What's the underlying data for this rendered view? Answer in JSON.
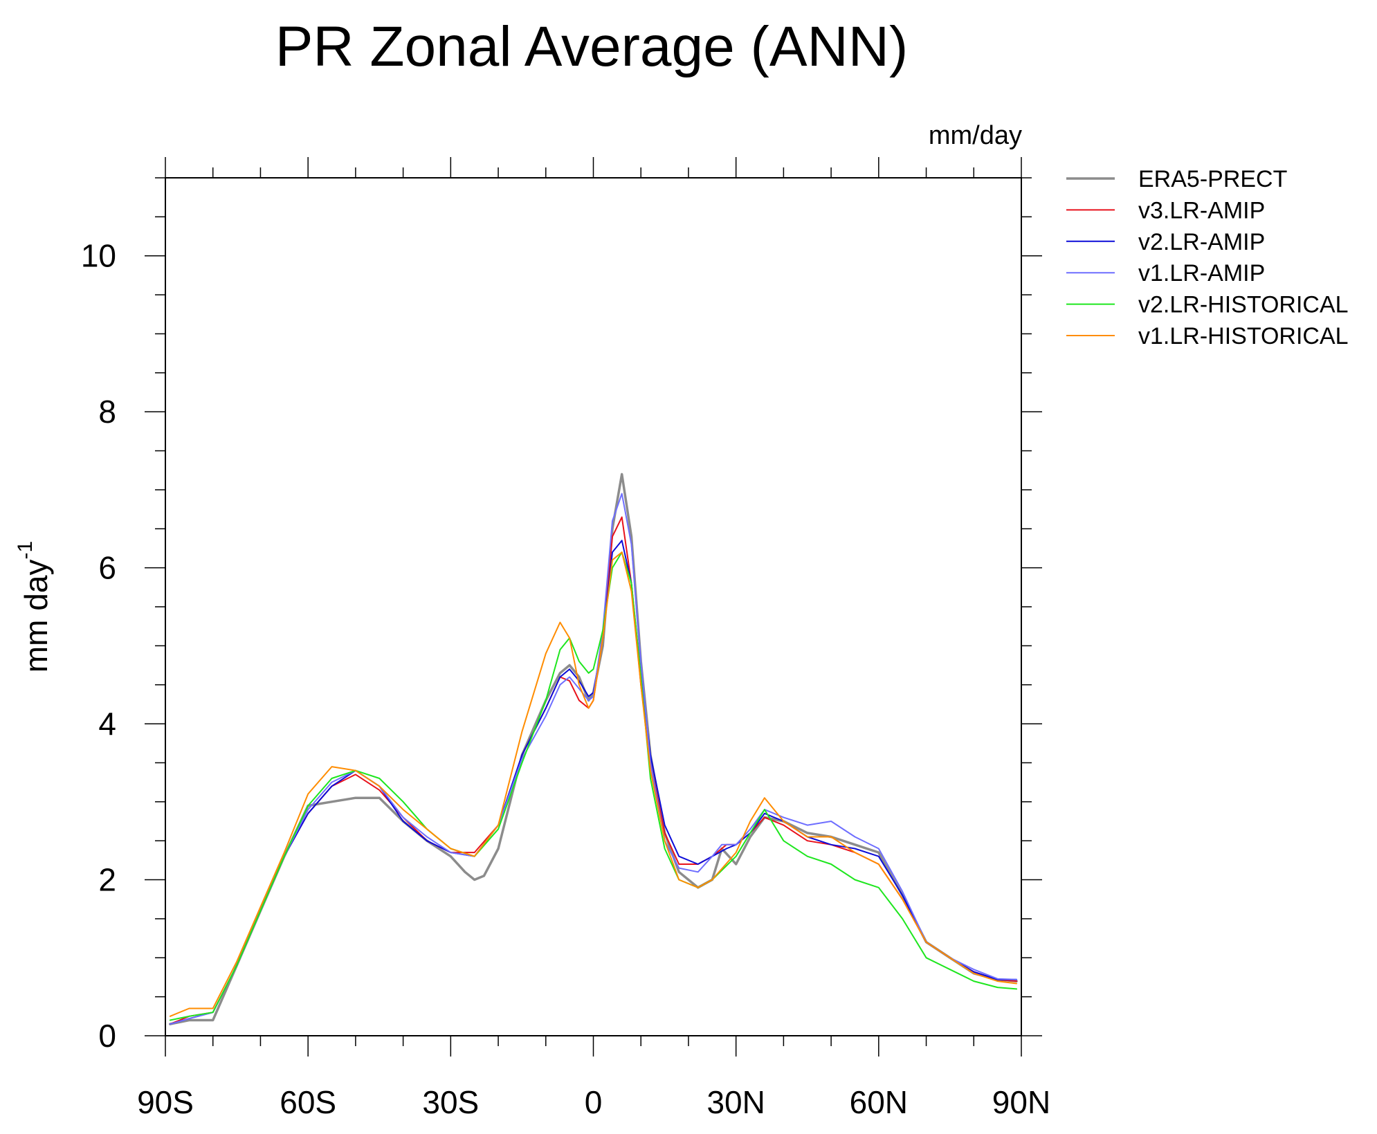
{
  "chart_data": {
    "type": "line",
    "title": "PR Zonal Average (ANN)",
    "units_label": "mm/day",
    "ylabel": "mm day",
    "ylabel_exponent": "-1",
    "xlabel": "",
    "xlim": [
      -90,
      90
    ],
    "ylim": [
      0,
      11
    ],
    "x_ticks": [
      -90,
      -60,
      -30,
      0,
      30,
      60,
      90
    ],
    "x_tick_labels": [
      "90S",
      "60S",
      "30S",
      "0",
      "30N",
      "60N",
      "90N"
    ],
    "y_ticks": [
      0,
      2,
      4,
      6,
      8,
      10
    ],
    "y_tick_labels": [
      "0",
      "2",
      "4",
      "6",
      "8",
      "10"
    ],
    "legend_position": "right",
    "series": [
      {
        "name": "ERA5-PRECT",
        "color": "#8c8c8c",
        "x": [
          -89,
          -85,
          -80,
          -75,
          -70,
          -65,
          -60,
          -55,
          -50,
          -45,
          -40,
          -35,
          -30,
          -27,
          -25,
          -23,
          -20,
          -15,
          -10,
          -7,
          -5,
          -3,
          -1,
          0,
          2,
          4,
          6,
          8,
          10,
          12,
          15,
          18,
          22,
          25,
          27,
          30,
          33,
          36,
          40,
          45,
          50,
          55,
          60,
          65,
          70,
          75,
          80,
          85,
          89
        ],
        "y": [
          0.15,
          0.2,
          0.2,
          0.9,
          1.6,
          2.3,
          2.95,
          3.0,
          3.05,
          3.05,
          2.75,
          2.5,
          2.3,
          2.1,
          2.0,
          2.05,
          2.4,
          3.6,
          4.3,
          4.65,
          4.75,
          4.6,
          4.3,
          4.4,
          5.0,
          6.5,
          7.2,
          6.4,
          4.8,
          3.6,
          2.6,
          2.1,
          1.9,
          2.0,
          2.4,
          2.2,
          2.55,
          2.8,
          2.75,
          2.6,
          2.55,
          2.45,
          2.35,
          1.8,
          1.2,
          1.0,
          0.8,
          0.72,
          0.7
        ]
      },
      {
        "name": "v3.LR-AMIP",
        "color": "#e8111b",
        "x": [
          -89,
          -85,
          -80,
          -75,
          -70,
          -65,
          -60,
          -55,
          -50,
          -45,
          -40,
          -35,
          -30,
          -25,
          -20,
          -15,
          -10,
          -7,
          -5,
          -3,
          -1,
          0,
          2,
          4,
          6,
          8,
          10,
          12,
          15,
          18,
          22,
          25,
          28,
          30,
          33,
          36,
          40,
          45,
          50,
          55,
          60,
          65,
          70,
          75,
          80,
          85,
          89
        ],
        "y": [
          0.15,
          0.25,
          0.3,
          0.9,
          1.6,
          2.3,
          2.85,
          3.2,
          3.35,
          3.15,
          2.8,
          2.5,
          2.35,
          2.35,
          2.7,
          3.6,
          4.2,
          4.6,
          4.55,
          4.3,
          4.2,
          4.3,
          5.1,
          6.4,
          6.65,
          5.8,
          4.5,
          3.5,
          2.6,
          2.2,
          2.2,
          2.3,
          2.45,
          2.45,
          2.6,
          2.8,
          2.7,
          2.5,
          2.45,
          2.35,
          2.2,
          1.75,
          1.2,
          1.0,
          0.82,
          0.72,
          0.7
        ]
      },
      {
        "name": "v2.LR-AMIP",
        "color": "#0c0cd8",
        "x": [
          -89,
          -85,
          -80,
          -75,
          -70,
          -65,
          -60,
          -55,
          -50,
          -45,
          -40,
          -35,
          -30,
          -25,
          -20,
          -15,
          -10,
          -7,
          -5,
          -3,
          -1,
          0,
          2,
          4,
          6,
          8,
          10,
          12,
          15,
          18,
          22,
          25,
          28,
          30,
          33,
          36,
          40,
          45,
          50,
          55,
          60,
          65,
          70,
          75,
          80,
          85,
          89
        ],
        "y": [
          0.15,
          0.22,
          0.3,
          0.9,
          1.6,
          2.3,
          2.85,
          3.2,
          3.4,
          3.2,
          2.75,
          2.5,
          2.35,
          2.3,
          2.7,
          3.6,
          4.2,
          4.6,
          4.7,
          4.55,
          4.35,
          4.4,
          5.1,
          6.2,
          6.35,
          5.8,
          4.6,
          3.6,
          2.7,
          2.3,
          2.2,
          2.3,
          2.4,
          2.45,
          2.6,
          2.85,
          2.75,
          2.55,
          2.45,
          2.4,
          2.3,
          1.8,
          1.2,
          1.0,
          0.82,
          0.72,
          0.72
        ]
      },
      {
        "name": "v1.LR-AMIP",
        "color": "#6e6eff",
        "x": [
          -89,
          -85,
          -80,
          -75,
          -70,
          -65,
          -60,
          -55,
          -50,
          -45,
          -40,
          -35,
          -30,
          -25,
          -20,
          -15,
          -10,
          -7,
          -5,
          -3,
          -1,
          0,
          2,
          4,
          6,
          8,
          10,
          12,
          15,
          18,
          22,
          25,
          27,
          30,
          33,
          36,
          40,
          45,
          50,
          55,
          60,
          65,
          70,
          75,
          80,
          85,
          89
        ],
        "y": [
          0.15,
          0.22,
          0.3,
          0.9,
          1.6,
          2.3,
          2.9,
          3.25,
          3.4,
          3.2,
          2.8,
          2.55,
          2.35,
          2.3,
          2.7,
          3.55,
          4.1,
          4.5,
          4.6,
          4.45,
          4.3,
          4.35,
          5.2,
          6.6,
          6.95,
          6.3,
          4.8,
          3.5,
          2.5,
          2.15,
          2.1,
          2.3,
          2.45,
          2.45,
          2.65,
          2.9,
          2.8,
          2.7,
          2.75,
          2.55,
          2.4,
          1.85,
          1.2,
          1.0,
          0.85,
          0.73,
          0.72
        ]
      },
      {
        "name": "v2.LR-HISTORICAL",
        "color": "#1ee61e",
        "x": [
          -89,
          -85,
          -80,
          -75,
          -70,
          -65,
          -60,
          -55,
          -50,
          -45,
          -40,
          -35,
          -30,
          -25,
          -20,
          -15,
          -10,
          -7,
          -5,
          -3,
          -1,
          0,
          2,
          4,
          6,
          8,
          10,
          12,
          15,
          18,
          22,
          25,
          30,
          33,
          36,
          40,
          45,
          50,
          55,
          60,
          65,
          70,
          75,
          80,
          85,
          89
        ],
        "y": [
          0.2,
          0.25,
          0.3,
          0.9,
          1.6,
          2.3,
          2.95,
          3.3,
          3.4,
          3.3,
          3.0,
          2.65,
          2.4,
          2.3,
          2.65,
          3.5,
          4.3,
          4.95,
          5.1,
          4.8,
          4.65,
          4.7,
          5.2,
          6.0,
          6.2,
          5.8,
          4.6,
          3.3,
          2.4,
          2.0,
          1.9,
          2.0,
          2.3,
          2.6,
          2.9,
          2.5,
          2.3,
          2.2,
          2.0,
          1.9,
          1.5,
          1.0,
          0.85,
          0.7,
          0.62,
          0.6
        ]
      },
      {
        "name": "v1.LR-HISTORICAL",
        "color": "#ff8c00",
        "x": [
          -89,
          -85,
          -80,
          -75,
          -70,
          -65,
          -60,
          -55,
          -50,
          -45,
          -40,
          -35,
          -30,
          -25,
          -20,
          -15,
          -10,
          -7,
          -5,
          -3,
          -1,
          0,
          2,
          4,
          6,
          8,
          10,
          12,
          15,
          18,
          22,
          25,
          30,
          33,
          36,
          40,
          45,
          50,
          55,
          60,
          65,
          70,
          75,
          80,
          85,
          89
        ],
        "y": [
          0.25,
          0.35,
          0.35,
          0.95,
          1.65,
          2.35,
          3.1,
          3.45,
          3.4,
          3.2,
          2.9,
          2.65,
          2.4,
          2.3,
          2.7,
          3.9,
          4.9,
          5.3,
          5.1,
          4.5,
          4.2,
          4.3,
          5.1,
          6.1,
          6.2,
          5.7,
          4.5,
          3.4,
          2.5,
          2.0,
          1.9,
          2.0,
          2.35,
          2.75,
          3.05,
          2.75,
          2.55,
          2.55,
          2.35,
          2.2,
          1.75,
          1.2,
          1.0,
          0.8,
          0.7,
          0.67
        ]
      }
    ]
  }
}
